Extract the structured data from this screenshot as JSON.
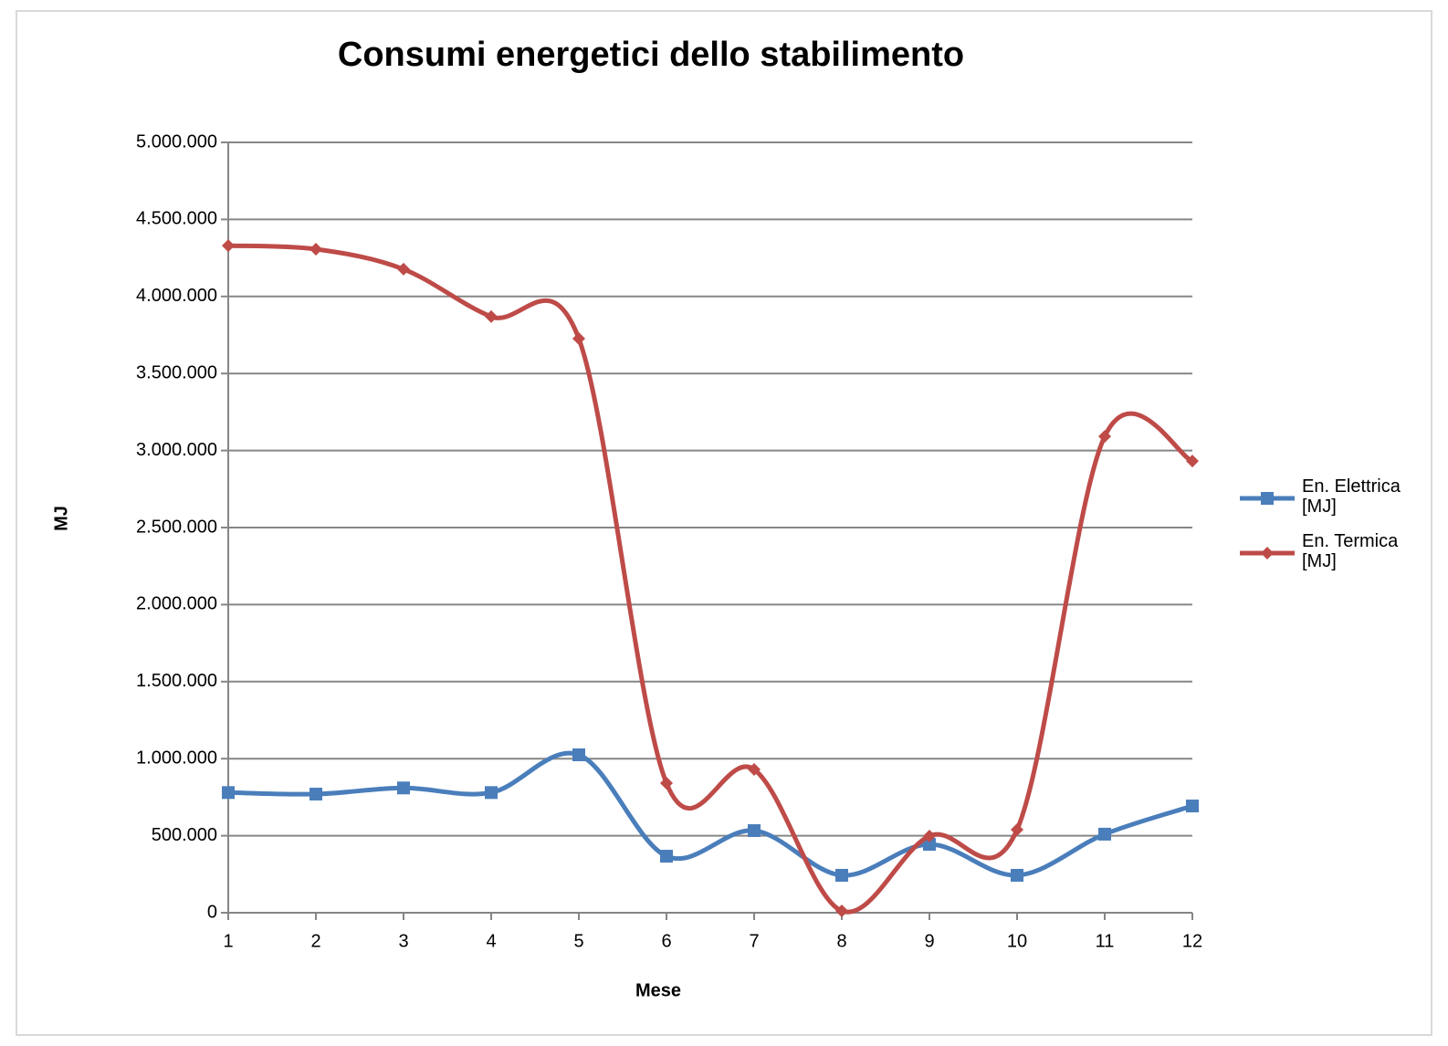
{
  "chart_data": {
    "type": "line",
    "title": "Consumi energetici dello stabilimento",
    "x_label": "Mese",
    "y_label": "MJ",
    "x": [
      1,
      2,
      3,
      4,
      5,
      6,
      7,
      8,
      9,
      10,
      11,
      12
    ],
    "xlim": [
      1,
      12
    ],
    "xticks": [
      1,
      2,
      3,
      4,
      5,
      6,
      7,
      8,
      9,
      10,
      11,
      12
    ],
    "ylim": [
      0,
      5000000
    ],
    "yticks": [
      0,
      {
        "value": 500000,
        "label": "500.000"
      },
      {
        "value": 1000000,
        "label": "1.000.000"
      },
      {
        "value": 1500000,
        "label": "1.500.000"
      },
      {
        "value": 2000000,
        "label": "2.000.000"
      },
      {
        "value": 2500000,
        "label": "2.500.000"
      },
      {
        "value": 3000000,
        "label": "3.000.000"
      },
      {
        "value": 3500000,
        "label": "3.500.000"
      },
      {
        "value": 4000000,
        "label": "4.000.000"
      },
      {
        "value": 4500000,
        "label": "4.500.000"
      },
      {
        "value": 5000000,
        "label": "5.000.000"
      }
    ],
    "grid": true,
    "smooth": true,
    "legend": "right",
    "series": [
      {
        "name": "En. Elettrica [MJ]",
        "color": "#4a7ebb",
        "marker": "square",
        "values": [
          780000,
          770000,
          810000,
          780000,
          1025000,
          367000,
          533000,
          243000,
          444000,
          243000,
          510000,
          693000
        ]
      },
      {
        "name": "En. Termica [MJ]",
        "color": "#be4b48",
        "marker": "diamond",
        "values": [
          4330000,
          4307000,
          4177000,
          3869000,
          3726000,
          841000,
          930000,
          12000,
          498000,
          539000,
          3092000,
          2932000
        ]
      }
    ]
  }
}
